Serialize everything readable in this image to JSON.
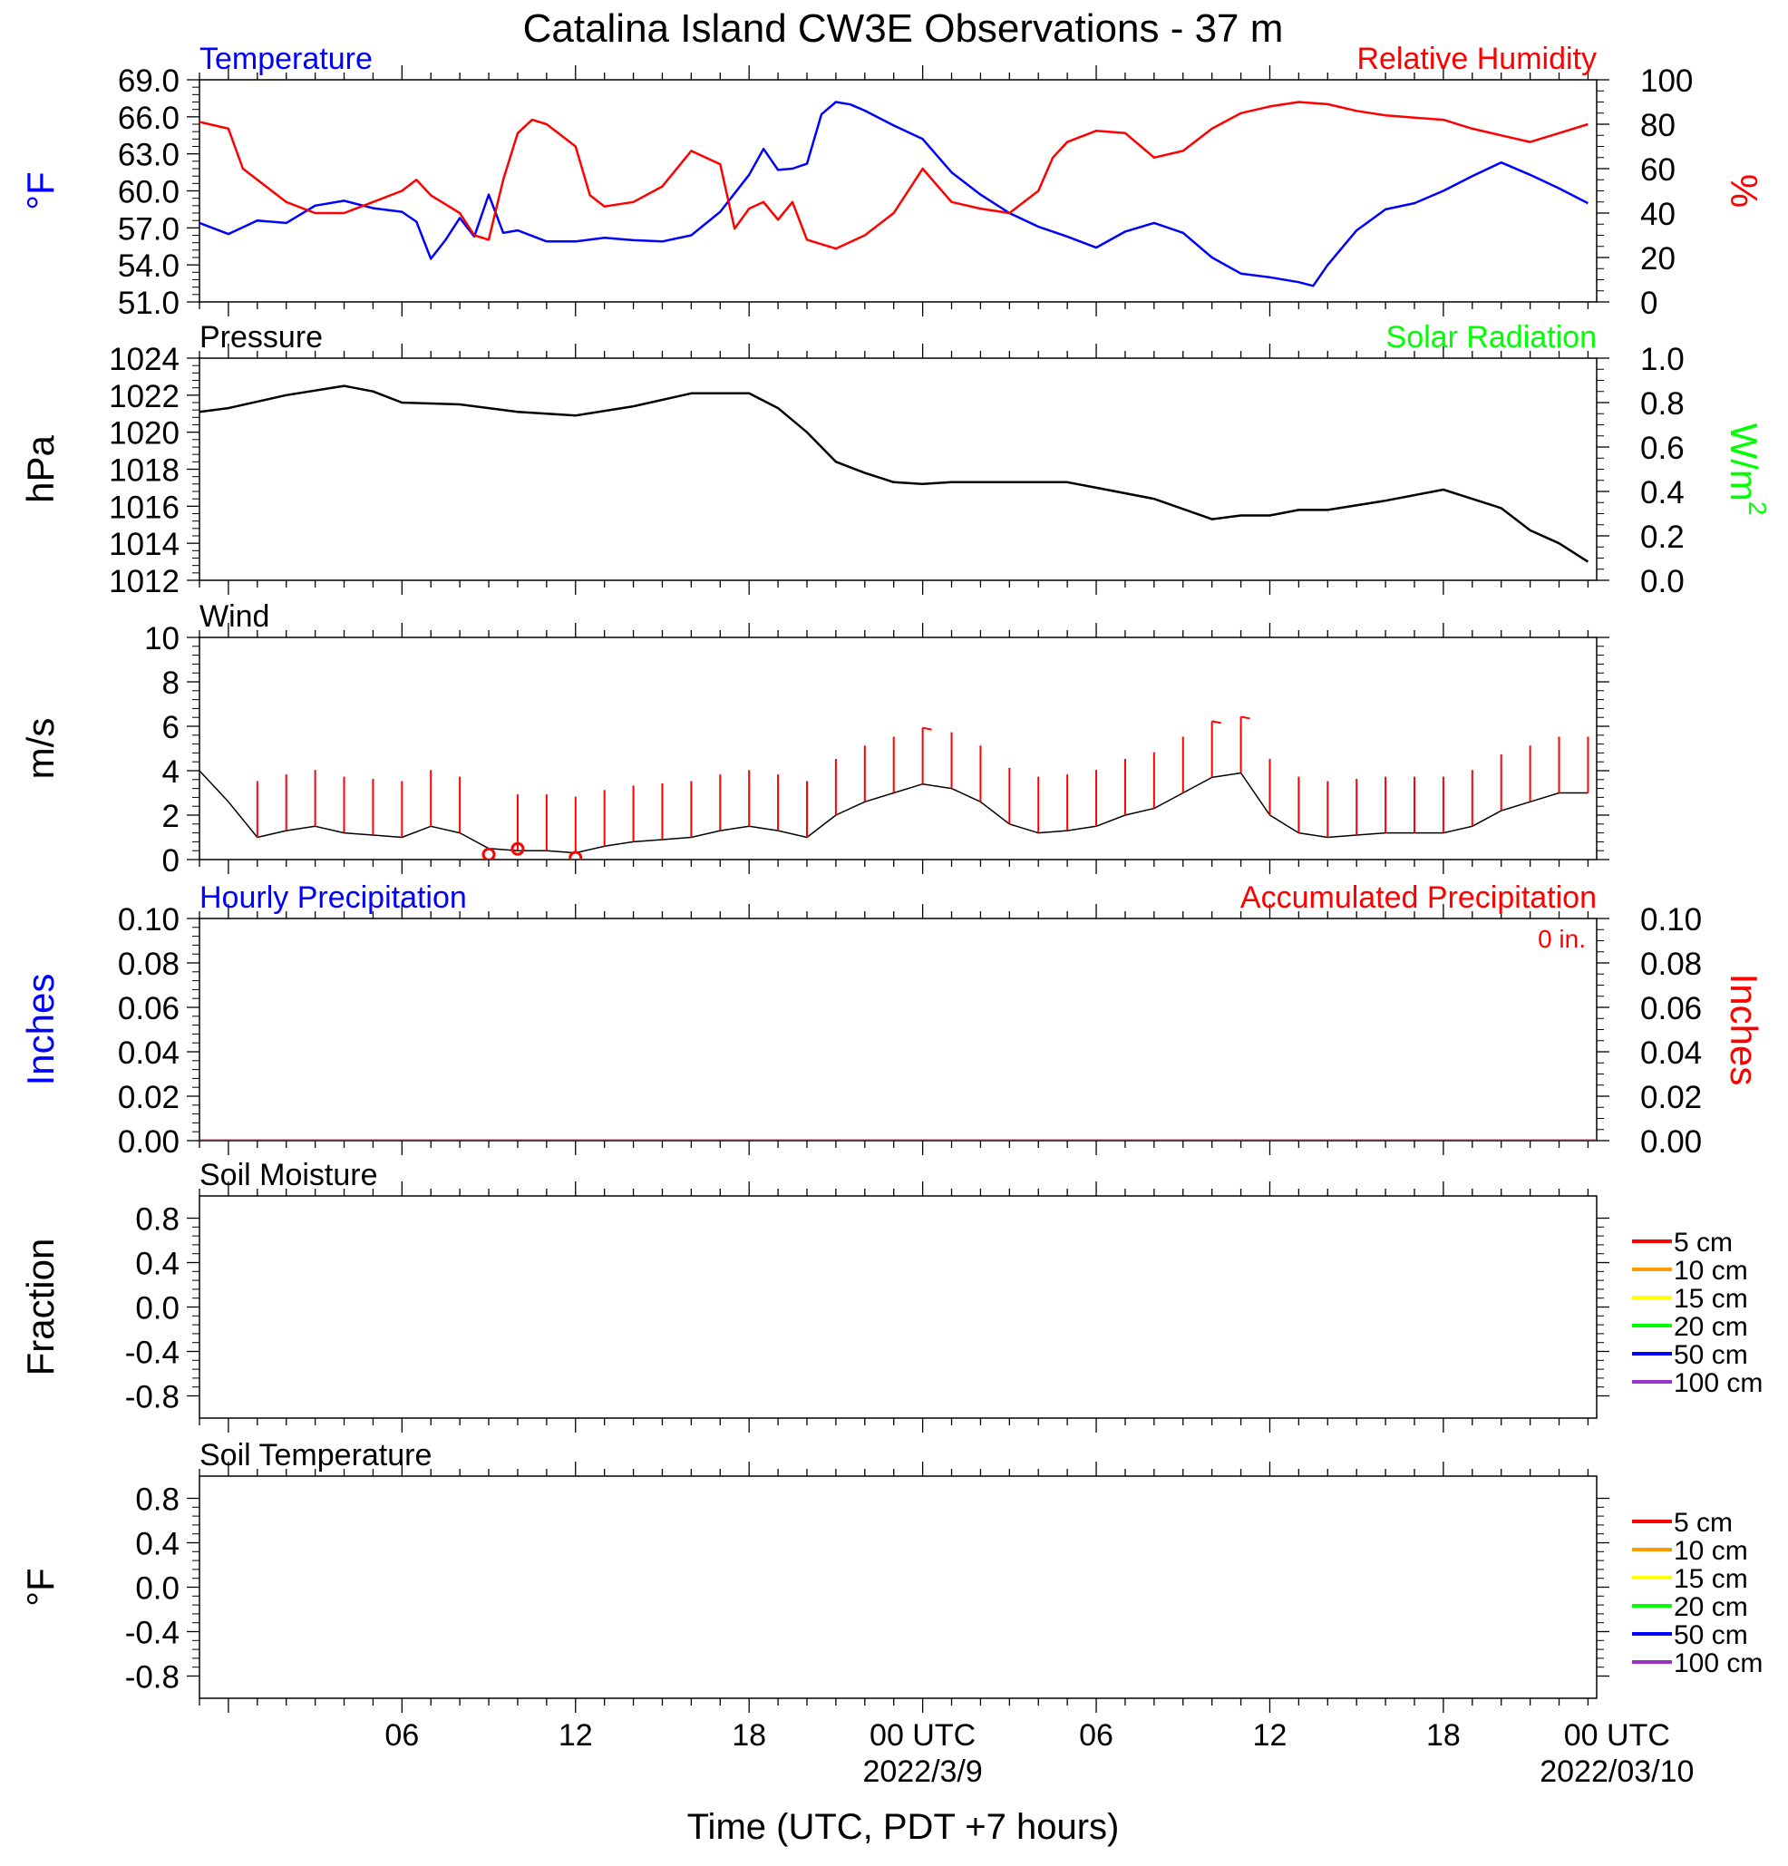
{
  "page": {
    "title": "Catalina Island CW3E Observations - 37 m",
    "x_axis_title": "Time (UTC, PDT +7 hours)"
  },
  "x_axis": {
    "range_hours": [
      -1,
      47.3
    ],
    "ticks": [
      {
        "h": 6,
        "label": "06"
      },
      {
        "h": 12,
        "label": "12"
      },
      {
        "h": 18,
        "label": "18"
      },
      {
        "h": 24,
        "label": "00 UTC",
        "date": "2022/3/9"
      },
      {
        "h": 30,
        "label": "06"
      },
      {
        "h": 36,
        "label": "12"
      },
      {
        "h": 42,
        "label": "18"
      },
      {
        "h": 48,
        "label": "00 UTC",
        "date": "2022/03/10"
      }
    ],
    "minor_step_hours": 1
  },
  "colors": {
    "temperature": "#0000ff",
    "humidity": "#ff0000",
    "pressure": "#000000",
    "solar": "#00ff00",
    "wind": "#000000",
    "wind_barb": "#ff0000",
    "soil_5cm": "#ff0000",
    "soil_10cm": "#ff9900",
    "soil_15cm": "#ffff00",
    "soil_20cm": "#00ff00",
    "soil_50cm": "#0000ff",
    "soil_100cm": "#9933cc"
  },
  "chart_data": [
    {
      "id": "temp_rh",
      "type": "line",
      "left_title": "Temperature",
      "right_title": "Relative Humidity",
      "ylabel": "°F",
      "ylabel_right": "%",
      "ylim": [
        51,
        69
      ],
      "ylim_right": [
        0,
        100
      ],
      "yticks": [
        "51.0",
        "54.0",
        "57.0",
        "60.0",
        "63.0",
        "66.0",
        "69.0"
      ],
      "yticks_right": [
        "0",
        "20",
        "40",
        "60",
        "80",
        "100"
      ],
      "series": [
        {
          "name": "Temperature",
          "axis": "left",
          "x": [
            -1,
            0,
            1,
            2,
            3,
            4,
            5,
            6,
            6.5,
            7,
            7.5,
            8,
            8.5,
            9,
            9.5,
            10,
            11,
            12,
            13,
            14,
            15,
            16,
            17,
            18,
            18.5,
            19,
            19.5,
            20,
            20.5,
            21,
            21.5,
            22,
            23,
            24,
            25,
            26,
            27,
            28,
            29,
            30,
            31,
            32,
            33,
            34,
            35,
            36,
            37,
            37.5,
            38,
            39,
            40,
            41,
            42,
            43,
            44,
            45,
            46,
            47
          ],
          "y": [
            57.4,
            56.5,
            57.6,
            57.4,
            58.8,
            59.2,
            58.6,
            58.3,
            57.5,
            54.5,
            56.0,
            57.8,
            56.3,
            59.7,
            56.6,
            56.8,
            55.9,
            55.9,
            56.2,
            56.0,
            55.9,
            56.4,
            58.3,
            61.3,
            63.4,
            61.7,
            61.8,
            62.2,
            66.2,
            67.2,
            67.0,
            66.5,
            65.3,
            64.2,
            61.5,
            59.7,
            58.2,
            57.1,
            56.3,
            55.4,
            56.7,
            57.4,
            56.6,
            54.6,
            53.3,
            53.0,
            52.6,
            52.3,
            54.0,
            56.8,
            58.5,
            59.0,
            60.0,
            61.2,
            62.3,
            61.3,
            60.2,
            59.0
          ]
        },
        {
          "name": "Relative Humidity",
          "axis": "right",
          "x": [
            -1,
            0,
            0.5,
            1,
            2,
            3,
            4,
            5,
            6,
            6.5,
            7,
            7.5,
            8,
            8.5,
            9,
            9.5,
            10,
            10.5,
            11,
            12,
            12.5,
            13,
            14,
            15,
            16,
            17,
            17.5,
            18,
            18.5,
            19,
            19.5,
            20,
            21,
            22,
            23,
            24,
            25,
            26,
            27,
            28,
            28.5,
            29,
            30,
            31,
            32,
            33,
            34,
            35,
            36,
            37,
            38,
            39,
            40,
            41,
            42,
            43,
            44,
            45,
            46,
            47
          ],
          "y": [
            81,
            78,
            60,
            55,
            45,
            40,
            40,
            45,
            50,
            55,
            48,
            44,
            40,
            30,
            28,
            55,
            76,
            82,
            80,
            70,
            48,
            43,
            45,
            52,
            68,
            62,
            33,
            42,
            45,
            37,
            45,
            28,
            24,
            30,
            40,
            60,
            45,
            42,
            40,
            50,
            65,
            72,
            77,
            76,
            65,
            68,
            78,
            85,
            88,
            90,
            89,
            86,
            84,
            83,
            82,
            78,
            75,
            72,
            76,
            80
          ]
        }
      ]
    },
    {
      "id": "pressure_solar",
      "type": "line",
      "left_title": "Pressure",
      "right_title": "Solar Radiation",
      "ylabel": "hPa",
      "ylabel_right": "W/m",
      "ylabel_right_sup": "2",
      "ylim": [
        1012,
        1024
      ],
      "ylim_right": [
        0.0,
        1.0
      ],
      "yticks": [
        "1012",
        "1014",
        "1016",
        "1018",
        "1020",
        "1022",
        "1024"
      ],
      "yticks_right": [
        "0.0",
        "0.2",
        "0.4",
        "0.6",
        "0.8",
        "1.0"
      ],
      "series": [
        {
          "name": "Pressure",
          "axis": "left",
          "x": [
            -1,
            0,
            2,
            4,
            5,
            6,
            8,
            10,
            12,
            14,
            16,
            18,
            19,
            20,
            21,
            22,
            23,
            24,
            25,
            26,
            28,
            29,
            30,
            32,
            34,
            35,
            36,
            37,
            38,
            40,
            42,
            43,
            44,
            45,
            46,
            47
          ],
          "y": [
            1021.1,
            1021.3,
            1022.0,
            1022.5,
            1022.2,
            1021.6,
            1021.5,
            1021.1,
            1020.9,
            1021.4,
            1022.1,
            1022.1,
            1021.3,
            1020.0,
            1018.4,
            1017.8,
            1017.3,
            1017.2,
            1017.3,
            1017.3,
            1017.3,
            1017.3,
            1017.0,
            1016.4,
            1015.3,
            1015.5,
            1015.5,
            1015.8,
            1015.8,
            1016.3,
            1016.9,
            1016.4,
            1015.9,
            1014.7,
            1014.0,
            1013.0
          ]
        }
      ]
    },
    {
      "id": "wind",
      "type": "line",
      "left_title": "Wind",
      "ylabel": "m/s",
      "ylim": [
        0,
        10
      ],
      "yticks": [
        "0",
        "2",
        "4",
        "6",
        "8",
        "10"
      ],
      "series": [
        {
          "name": "Wind",
          "x": [
            -1,
            0,
            1,
            2,
            3,
            4,
            5,
            6,
            7,
            8,
            9,
            10,
            11,
            12,
            13,
            14,
            15,
            16,
            17,
            18,
            19,
            20,
            21,
            22,
            23,
            24,
            25,
            26,
            27,
            28,
            29,
            30,
            31,
            32,
            33,
            34,
            35,
            36,
            37,
            38,
            39,
            40,
            41,
            42,
            43,
            44,
            45,
            46,
            47
          ],
          "y": [
            4.0,
            2.6,
            1.0,
            1.3,
            1.5,
            1.2,
            1.1,
            1.0,
            1.5,
            1.2,
            0.5,
            0.4,
            0.4,
            0.3,
            0.6,
            0.8,
            0.9,
            1.0,
            1.3,
            1.5,
            1.3,
            1.0,
            2.0,
            2.6,
            3.0,
            3.4,
            3.2,
            2.6,
            1.6,
            1.2,
            1.3,
            1.5,
            2.0,
            2.3,
            3.0,
            3.7,
            3.9,
            2.0,
            1.2,
            1.0,
            1.1,
            1.2,
            1.2,
            1.2,
            1.5,
            2.2,
            2.6,
            3.0,
            3.0
          ]
        },
        {
          "name": "Wind barbs",
          "x": [
            1,
            2,
            3,
            4,
            5,
            6,
            7,
            8,
            10,
            11,
            12,
            13,
            14,
            15,
            16,
            17,
            18,
            19,
            20,
            21,
            22,
            23,
            24,
            25,
            26,
            27,
            28,
            29,
            30,
            31,
            32,
            33,
            34,
            35,
            36,
            37,
            38,
            39,
            40,
            41,
            42,
            43,
            44,
            45,
            46,
            47
          ],
          "y": [
            1.0,
            1.3,
            1.5,
            1.2,
            1.1,
            1.0,
            1.5,
            1.2,
            0.4,
            0.4,
            0.3,
            0.6,
            0.8,
            0.9,
            1.0,
            1.3,
            1.5,
            1.3,
            1.0,
            2.0,
            2.6,
            3.0,
            3.4,
            3.2,
            2.6,
            1.6,
            1.2,
            1.3,
            1.5,
            2.0,
            2.3,
            3.0,
            3.7,
            3.9,
            2.0,
            1.2,
            1.0,
            1.1,
            1.2,
            1.2,
            1.2,
            1.5,
            2.2,
            2.6,
            3.0,
            3.0
          ]
        },
        {
          "name": "Calm",
          "x": [
            9,
            10,
            12
          ],
          "y": [
            0.15,
            0.4,
            0.0
          ]
        }
      ]
    },
    {
      "id": "precip",
      "type": "line",
      "left_title": "Hourly Precipitation",
      "right_title": "Accumulated Precipitation",
      "annotation": "0 in.",
      "ylabel": "Inches",
      "ylabel_right": "Inches",
      "ylim": [
        0,
        0.1
      ],
      "yticks": [
        "0.00",
        "0.02",
        "0.04",
        "0.06",
        "0.08",
        "0.10"
      ],
      "yticks_right": [
        "0.00",
        "0.02",
        "0.04",
        "0.06",
        "0.08",
        "0.10"
      ],
      "series": [
        {
          "name": "Hourly Precipitation",
          "x": [
            -1,
            47.3
          ],
          "y": [
            0,
            0
          ]
        },
        {
          "name": "Accumulated Precipitation",
          "x": [
            -1,
            47.3
          ],
          "y": [
            0,
            0
          ]
        }
      ]
    },
    {
      "id": "soil_moisture",
      "type": "line",
      "left_title": "Soil Moisture",
      "ylabel": "Fraction",
      "ylim": [
        -1,
        1
      ],
      "yticks": [
        "-0.8",
        "-0.4",
        "0.0",
        "0.4",
        "0.8"
      ],
      "legend": [
        "5 cm",
        "10 cm",
        "15 cm",
        "20 cm",
        "50 cm",
        "100 cm"
      ],
      "series": []
    },
    {
      "id": "soil_temperature",
      "type": "line",
      "left_title": "Soil Temperature",
      "ylabel": "°F",
      "ylim": [
        -1,
        1
      ],
      "yticks": [
        "-0.8",
        "-0.4",
        "0.0",
        "0.4",
        "0.8"
      ],
      "legend": [
        "5 cm",
        "10 cm",
        "15 cm",
        "20 cm",
        "50 cm",
        "100 cm"
      ],
      "series": []
    }
  ]
}
